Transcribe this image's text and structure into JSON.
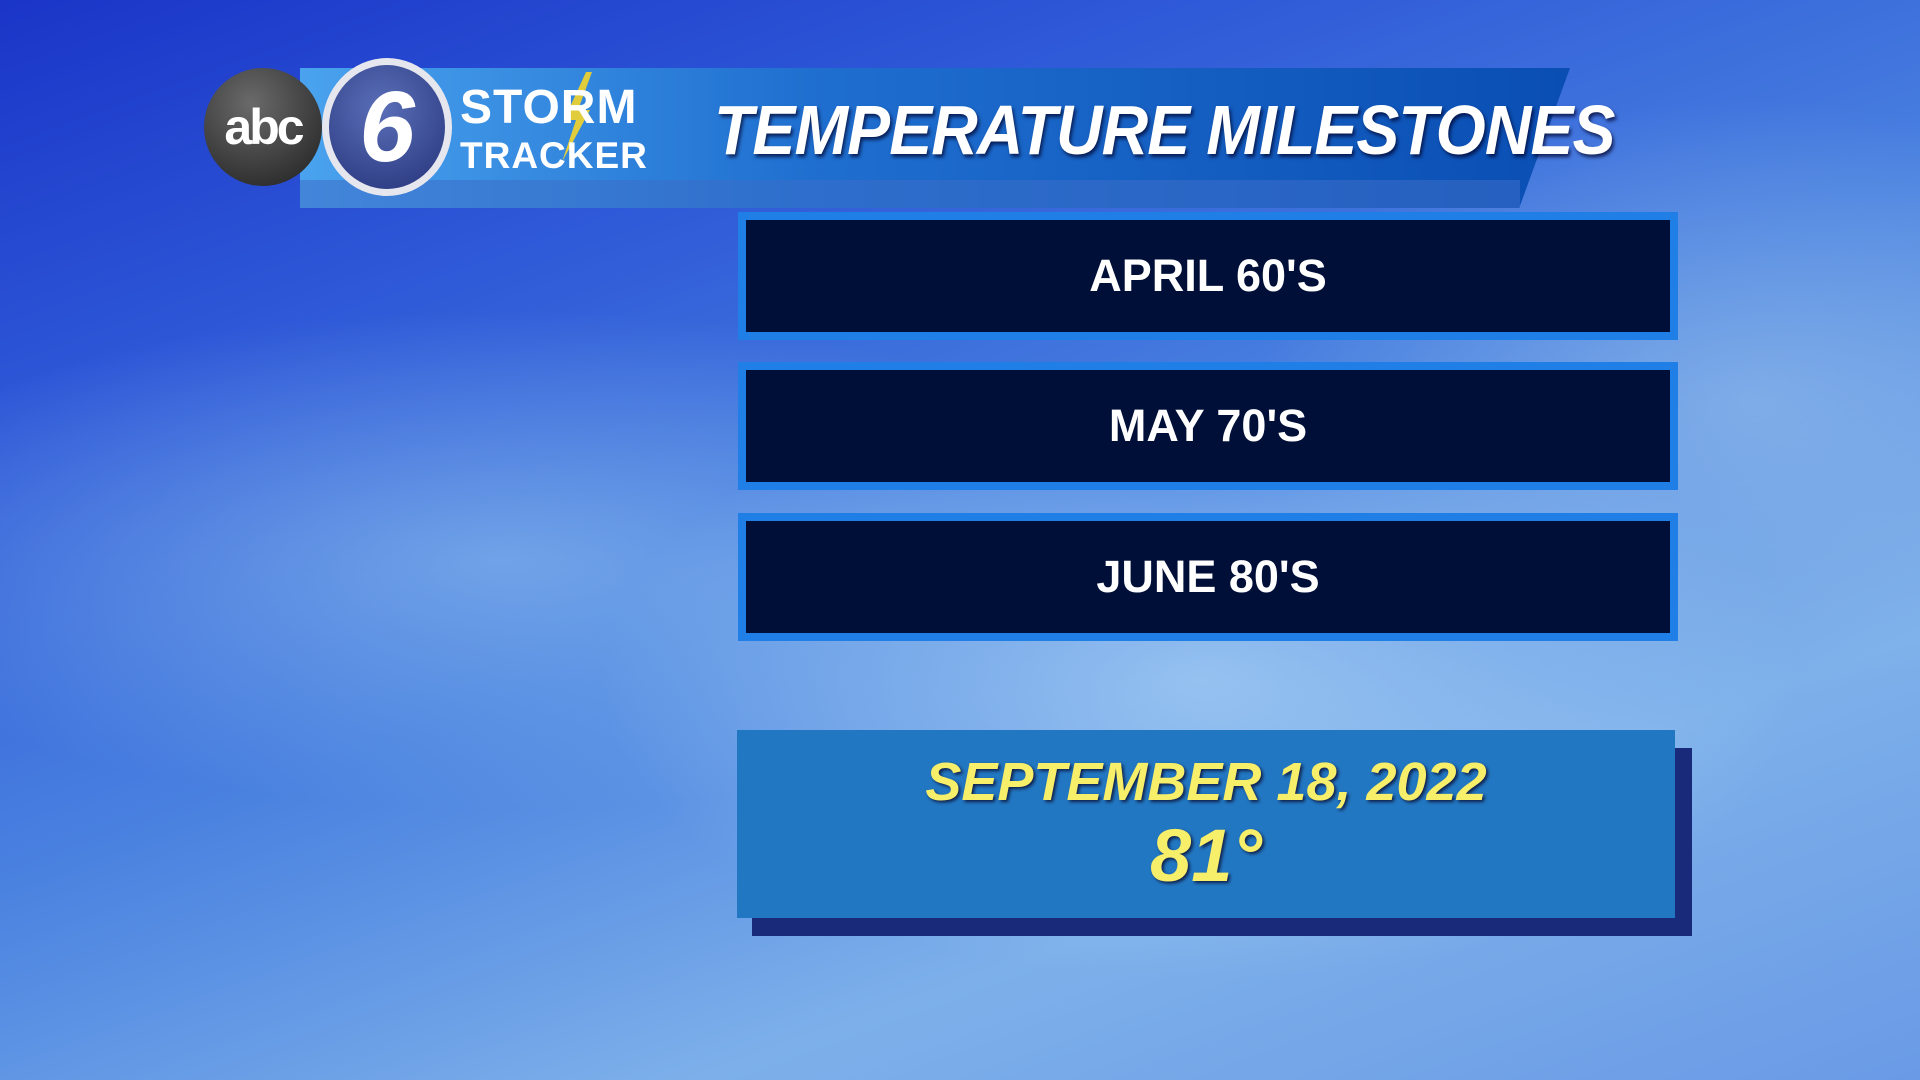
{
  "header": {
    "logo": {
      "network": "abc",
      "channel": "6",
      "line1": "STORM",
      "line2": "TRACKER"
    },
    "title": "TEMPERATURE MILESTONES"
  },
  "milestones": [
    {
      "label": "APRIL 60'S"
    },
    {
      "label": "MAY 70'S"
    },
    {
      "label": "JUNE 80'S"
    }
  ],
  "record": {
    "date": "SEPTEMBER 18, 2022",
    "temperature": "81°"
  },
  "colors": {
    "box_fill": "#000f38",
    "box_border": "#1f7fe6",
    "record_fill": "#2277c2",
    "record_text": "#f7ee6a"
  }
}
